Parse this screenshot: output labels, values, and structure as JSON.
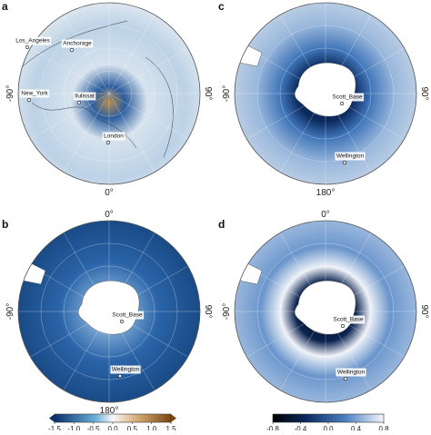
{
  "panels": [
    {
      "label": "a",
      "left": "-90°",
      "right": "90°",
      "bottom": "0°",
      "places": [
        "Los_Angeles",
        "Anchorage",
        "New_York",
        "Ilulissat",
        "London"
      ]
    },
    {
      "label": "b",
      "top": "0°",
      "left": "-90°",
      "right": "90°",
      "bottom": "180°",
      "places": [
        "Scott_Base",
        "Wellington"
      ]
    },
    {
      "label": "c",
      "left": "-90°",
      "right": "90°",
      "bottom": "180°",
      "places": [
        "Scott_Base",
        "Wellington"
      ]
    },
    {
      "label": "d",
      "top": "0°",
      "left": "-90°",
      "right": "90°",
      "places": [
        "Scott_Base",
        "Wellington"
      ]
    }
  ],
  "colorbars": [
    {
      "ticks": [
        "-1.5",
        "-1.0",
        "-0.5",
        "0.0",
        "0.5",
        "1.0",
        "1.5"
      ]
    },
    {
      "ticks": [
        "-0.8",
        "-0.4",
        "0.0",
        "0.4",
        "0.8"
      ]
    }
  ]
}
